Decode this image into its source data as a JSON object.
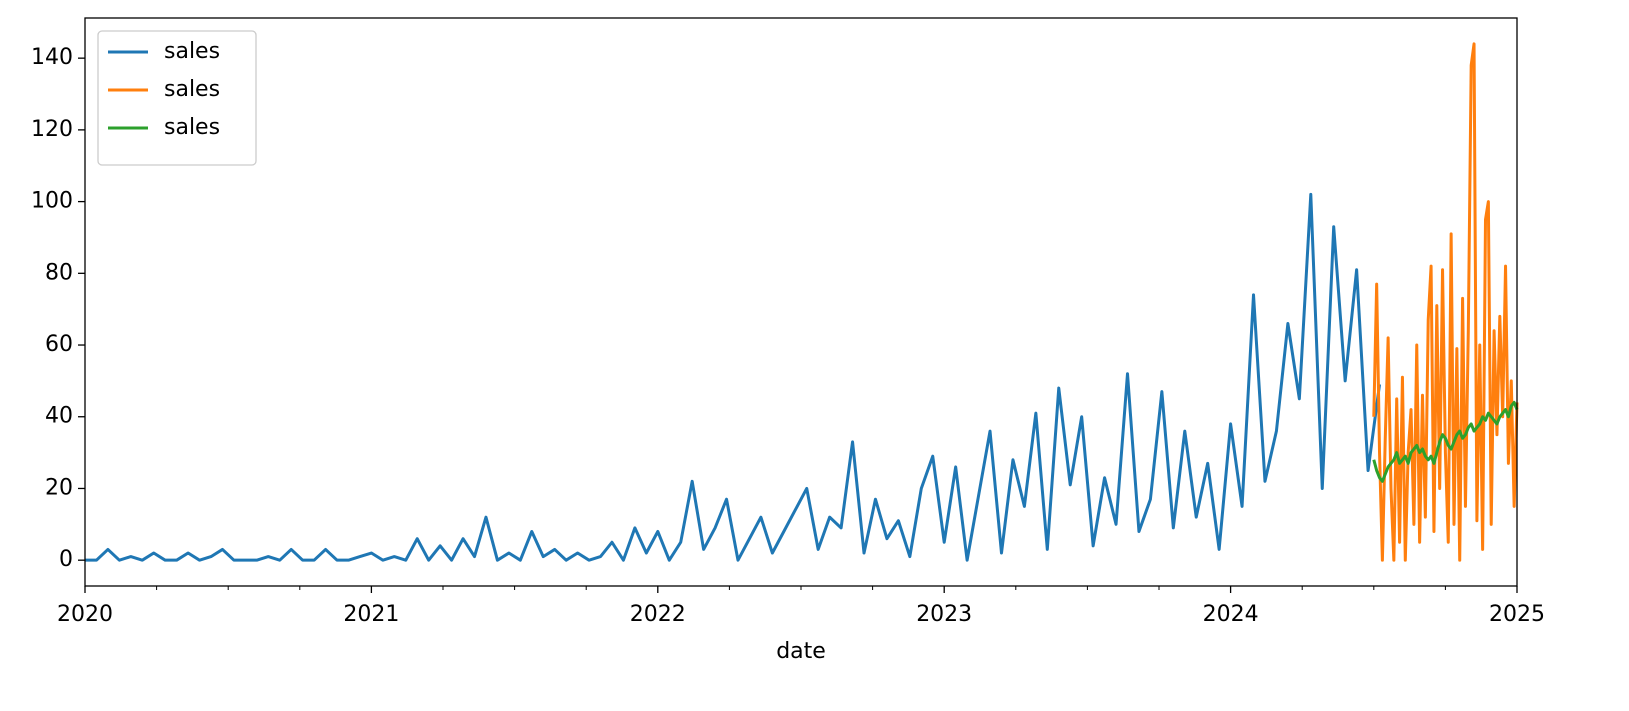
{
  "chart_data": {
    "type": "line",
    "xlabel": "date",
    "xlim": [
      2020,
      2025
    ],
    "xticks": [
      2020,
      2021,
      2022,
      2023,
      2024,
      2025
    ],
    "xminorticks": [
      2020.25,
      2020.5,
      2020.75,
      2021.25,
      2021.5,
      2021.75,
      2022.25,
      2022.5,
      2022.75,
      2023.25,
      2023.5,
      2023.75,
      2024.25,
      2024.5,
      2024.75
    ],
    "ylim": [
      -7.2,
      151.2
    ],
    "yticks": [
      0,
      20,
      40,
      60,
      80,
      100,
      120,
      140
    ],
    "grid": false,
    "legend": "upper left",
    "series": [
      {
        "name": "sales",
        "color": "#1f77b4",
        "x": [
          2020.0,
          2020.04,
          2020.08,
          2020.12,
          2020.16,
          2020.2,
          2020.24,
          2020.28,
          2020.32,
          2020.36,
          2020.4,
          2020.44,
          2020.48,
          2020.52,
          2020.56,
          2020.6,
          2020.64,
          2020.68,
          2020.72,
          2020.76,
          2020.8,
          2020.84,
          2020.88,
          2020.92,
          2020.96,
          2021.0,
          2021.04,
          2021.08,
          2021.12,
          2021.16,
          2021.2,
          2021.24,
          2021.28,
          2021.32,
          2021.36,
          2021.4,
          2021.44,
          2021.48,
          2021.52,
          2021.56,
          2021.6,
          2021.64,
          2021.68,
          2021.72,
          2021.76,
          2021.8,
          2021.84,
          2021.88,
          2021.92,
          2021.96,
          2022.0,
          2022.04,
          2022.08,
          2022.12,
          2022.16,
          2022.2,
          2022.24,
          2022.28,
          2022.32,
          2022.36,
          2022.4,
          2022.44,
          2022.48,
          2022.52,
          2022.56,
          2022.6,
          2022.64,
          2022.68,
          2022.72,
          2022.76,
          2022.8,
          2022.84,
          2022.88,
          2022.92,
          2022.96,
          2023.0,
          2023.04,
          2023.08,
          2023.12,
          2023.16,
          2023.2,
          2023.24,
          2023.28,
          2023.32,
          2023.36,
          2023.4,
          2023.44,
          2023.48,
          2023.52,
          2023.56,
          2023.6,
          2023.64,
          2023.68,
          2023.72,
          2023.76,
          2023.8,
          2023.84,
          2023.88,
          2023.92,
          2023.96,
          2024.0,
          2024.04,
          2024.08,
          2024.12,
          2024.16,
          2024.2,
          2024.24,
          2024.28,
          2024.32,
          2024.36,
          2024.4,
          2024.44,
          2024.48,
          2024.52
        ],
        "values": [
          0,
          0,
          3,
          0,
          1,
          0,
          2,
          0,
          0,
          2,
          0,
          1,
          3,
          0,
          0,
          0,
          1,
          0,
          3,
          0,
          0,
          3,
          0,
          0,
          1,
          2,
          0,
          1,
          0,
          6,
          0,
          4,
          0,
          6,
          1,
          12,
          0,
          2,
          0,
          8,
          1,
          3,
          0,
          2,
          0,
          1,
          5,
          0,
          9,
          2,
          8,
          0,
          5,
          22,
          3,
          9,
          17,
          0,
          6,
          12,
          2,
          8,
          14,
          20,
          3,
          12,
          9,
          33,
          2,
          17,
          6,
          11,
          1,
          20,
          29,
          5,
          26,
          0,
          18,
          36,
          2,
          28,
          15,
          41,
          3,
          48,
          21,
          40,
          4,
          23,
          10,
          52,
          8,
          17,
          47,
          9,
          36,
          12,
          27,
          3,
          38,
          15,
          74,
          22,
          36,
          66,
          45,
          102,
          20,
          93,
          50,
          81,
          25,
          49
        ]
      },
      {
        "name": "sales",
        "color": "#ff7f0e",
        "x": [
          2024.5,
          2024.51,
          2024.52,
          2024.53,
          2024.54,
          2024.55,
          2024.56,
          2024.57,
          2024.58,
          2024.59,
          2024.6,
          2024.61,
          2024.62,
          2024.63,
          2024.64,
          2024.65,
          2024.66,
          2024.67,
          2024.68,
          2024.69,
          2024.7,
          2024.71,
          2024.72,
          2024.73,
          2024.74,
          2024.75,
          2024.76,
          2024.77,
          2024.78,
          2024.79,
          2024.8,
          2024.81,
          2024.82,
          2024.83,
          2024.84,
          2024.85,
          2024.86,
          2024.87,
          2024.88,
          2024.89,
          2024.9,
          2024.91,
          2024.92,
          2024.93,
          2024.94,
          2024.95,
          2024.96,
          2024.97,
          2024.98,
          2024.99,
          2025.0
        ],
        "values": [
          40,
          77,
          30,
          0,
          34,
          62,
          20,
          0,
          45,
          5,
          51,
          0,
          30,
          42,
          10,
          60,
          5,
          46,
          12,
          67,
          82,
          8,
          71,
          20,
          81,
          30,
          5,
          91,
          10,
          59,
          0,
          73,
          15,
          64,
          138,
          144,
          11,
          60,
          3,
          95,
          100,
          10,
          64,
          35,
          68,
          40,
          82,
          27,
          50,
          15,
          44
        ]
      },
      {
        "name": "sales",
        "color": "#2ca02c",
        "x": [
          2024.5,
          2024.51,
          2024.52,
          2024.53,
          2024.54,
          2024.55,
          2024.56,
          2024.57,
          2024.58,
          2024.59,
          2024.6,
          2024.61,
          2024.62,
          2024.63,
          2024.64,
          2024.65,
          2024.66,
          2024.67,
          2024.68,
          2024.69,
          2024.7,
          2024.71,
          2024.72,
          2024.73,
          2024.74,
          2024.75,
          2024.76,
          2024.77,
          2024.78,
          2024.79,
          2024.8,
          2024.81,
          2024.82,
          2024.83,
          2024.84,
          2024.85,
          2024.86,
          2024.87,
          2024.88,
          2024.89,
          2024.9,
          2024.91,
          2024.92,
          2024.93,
          2024.94,
          2024.95,
          2024.96,
          2024.97,
          2024.98,
          2024.99,
          2025.0
        ],
        "values": [
          28,
          25,
          23,
          22,
          24,
          26,
          27,
          28,
          30,
          27,
          28,
          29,
          27,
          30,
          31,
          32,
          30,
          31,
          29,
          28,
          29,
          27,
          30,
          33,
          35,
          34,
          32,
          31,
          33,
          35,
          36,
          34,
          35,
          37,
          38,
          36,
          37,
          38,
          40,
          39,
          41,
          40,
          39,
          38,
          40,
          41,
          42,
          40,
          43,
          44,
          42
        ]
      }
    ]
  }
}
